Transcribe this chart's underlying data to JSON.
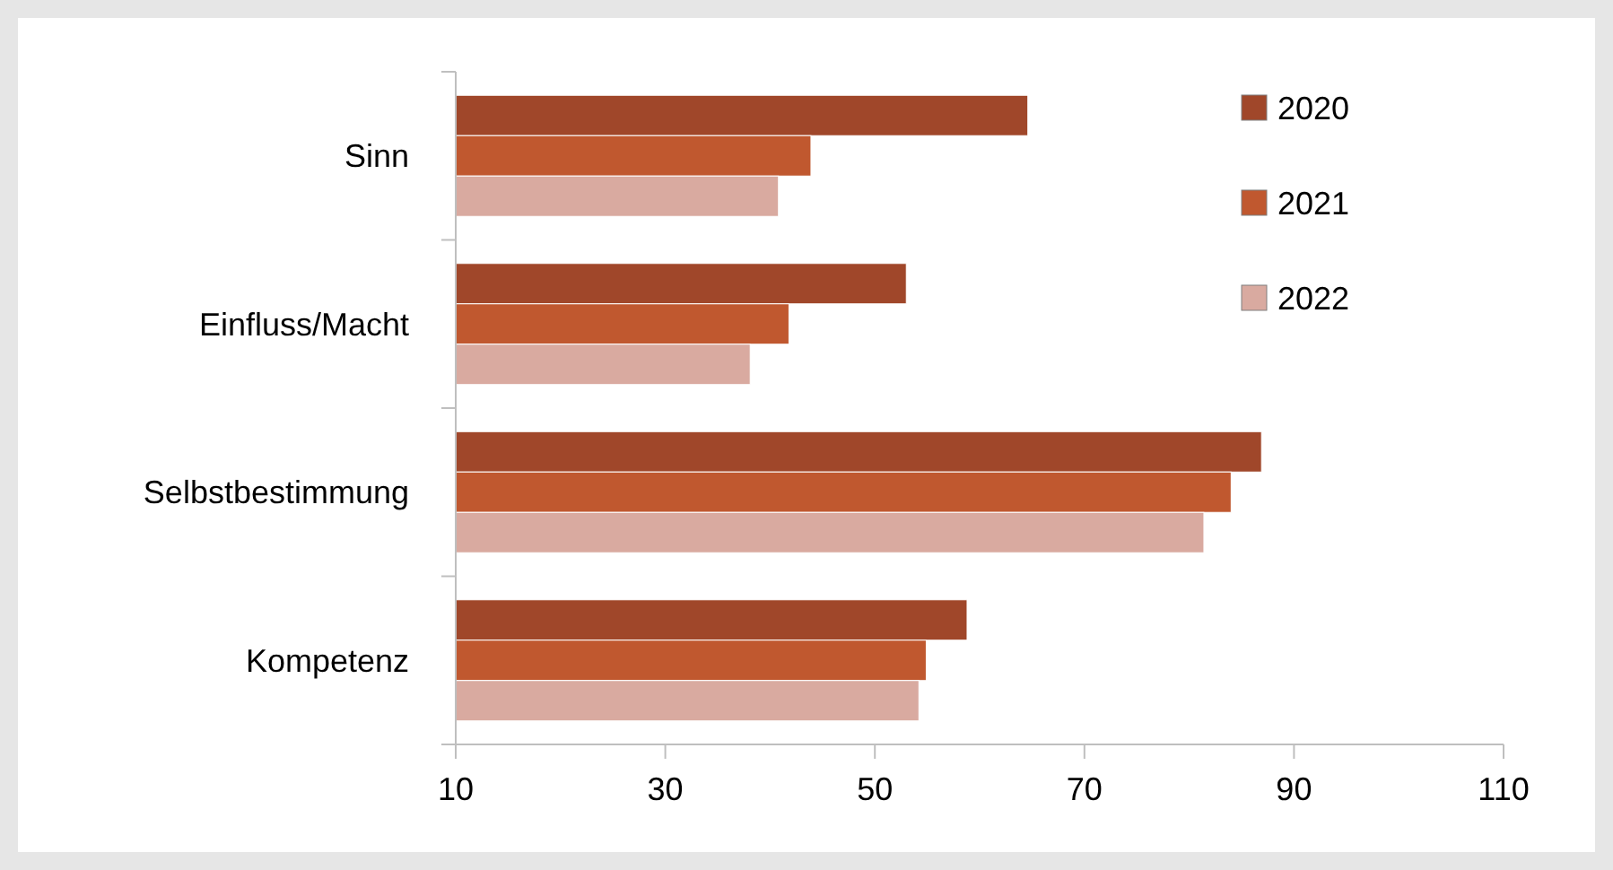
{
  "chart_data": {
    "type": "bar",
    "orientation": "horizontal",
    "categories": [
      "Sinn",
      "Einfluss/Macht",
      "Selbstbestimmung",
      "Kompetenz"
    ],
    "series": [
      {
        "name": "2020",
        "color": "#a0472a",
        "values": [
          64.6,
          53,
          86.9,
          58.8
        ]
      },
      {
        "name": "2021",
        "color": "#c0582f",
        "values": [
          43.9,
          41.8,
          84,
          54.9
        ]
      },
      {
        "name": "2022",
        "color": "#d9aaa0",
        "values": [
          40.8,
          38.1,
          81.4,
          54.2
        ]
      }
    ],
    "xlim": [
      10,
      110
    ],
    "xticks": [
      10,
      30,
      50,
      70,
      90,
      110
    ],
    "grid": false,
    "legend": "top right"
  }
}
